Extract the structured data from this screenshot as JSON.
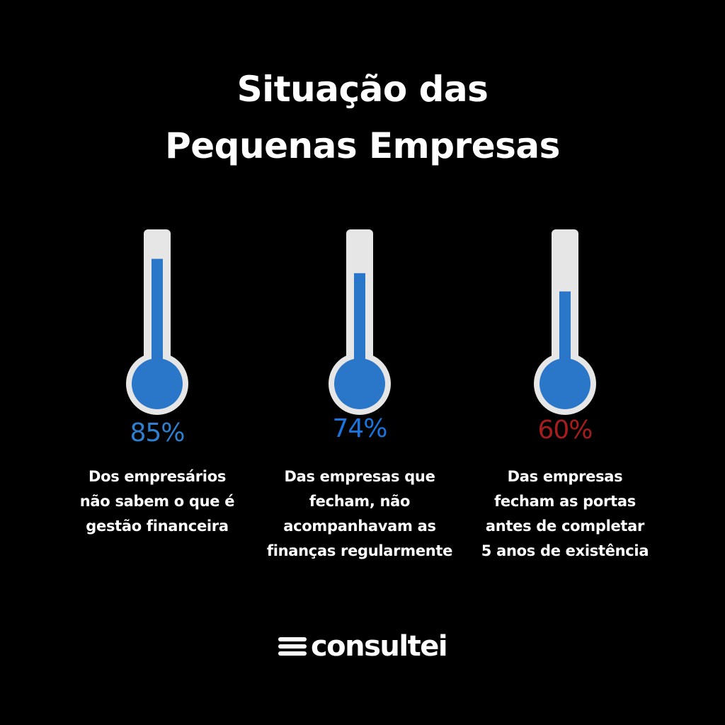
{
  "header": {
    "title_line1": "Situação das",
    "title_line2": "Pequenas Empresas"
  },
  "stats": [
    {
      "percent_label": "85%",
      "level": 0.85,
      "percent_color": "#2f7fd0",
      "description": [
        "Dos empresários",
        "não sabem o que é",
        "gestão financeira"
      ]
    },
    {
      "percent_label": "74%",
      "level": 0.74,
      "percent_color": "#1a74e0",
      "description": [
        "Das empresas que",
        "fecham, não",
        "acompanhavam as",
        "finanças regularmente"
      ]
    },
    {
      "percent_label": "60%",
      "level": 0.6,
      "percent_color": "#a61d1d",
      "description": [
        "Das empresas",
        "fecham as portas",
        "antes de completar",
        "5 anos de existência"
      ]
    }
  ],
  "colors": {
    "background": "#000000",
    "tube": "#e6e6e6",
    "mercury": "#2a76c8"
  },
  "brand": {
    "icon": "menu-lines-logo-icon",
    "name": "consultei"
  }
}
